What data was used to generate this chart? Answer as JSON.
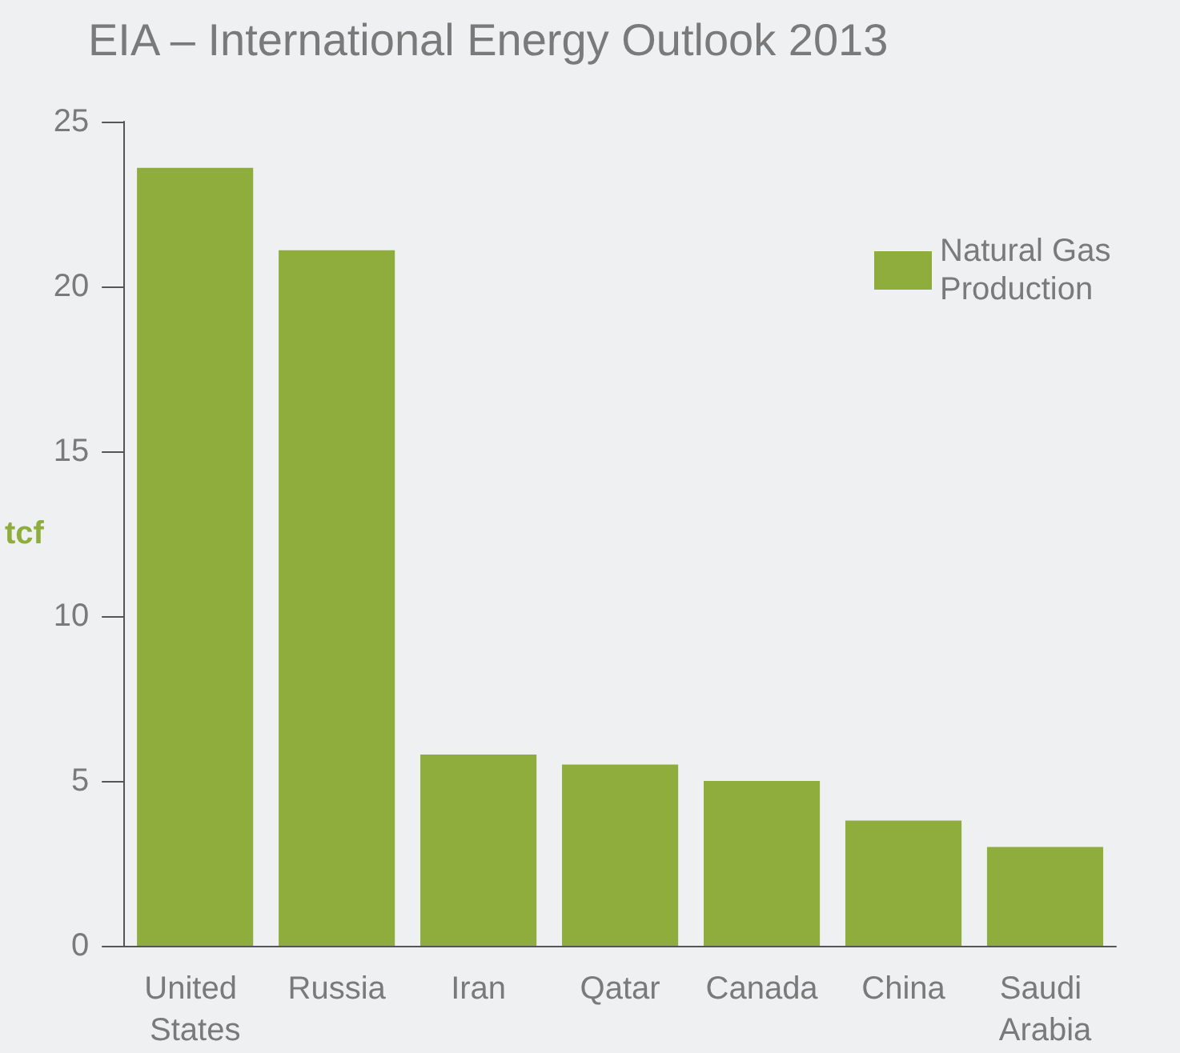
{
  "chart_data": {
    "type": "bar",
    "title": "EIA – International Energy Outlook 2013",
    "ylabel": "tcf",
    "categories": [
      "United States",
      "Russia",
      "Iran",
      "Qatar",
      "Canada",
      "China",
      "Saudi Arabia"
    ],
    "series": [
      {
        "name": "Natural Gas Production",
        "color": "#8fad3c",
        "values": [
          23.6,
          21.1,
          5.8,
          5.5,
          5.0,
          3.8,
          3.0
        ]
      }
    ],
    "ylim": [
      0,
      25
    ],
    "yticks": [
      0,
      5,
      10,
      15,
      20,
      25
    ],
    "grid": false,
    "legend": "top right"
  }
}
